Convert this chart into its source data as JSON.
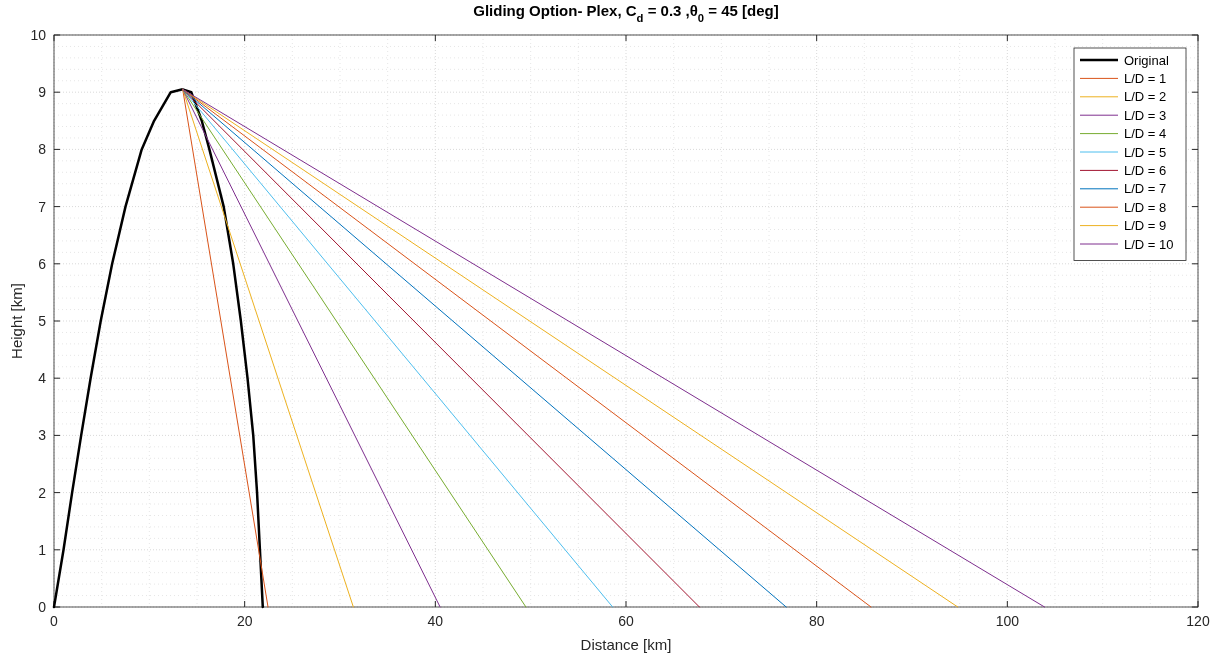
{
  "chart_data": {
    "type": "line",
    "title": "Gliding Option- Plex, C$_{d}$ = 0.3 ,θ$_{0}$ = 45 [deg]",
    "xlabel": "Distance [km]",
    "ylabel": "Height [km]",
    "xlim": [
      0,
      120
    ],
    "ylim": [
      0,
      10
    ],
    "xticks": [
      0,
      20,
      40,
      60,
      80,
      100,
      120
    ],
    "yticks": [
      0,
      1,
      2,
      3,
      4,
      5,
      6,
      7,
      8,
      9,
      10
    ],
    "grid": true,
    "legend": "top right",
    "marker": "none",
    "line_style": "solid",
    "series": [
      {
        "name": "Original",
        "color": "#000000",
        "x": [
          0,
          1.0,
          1.9,
          2.85,
          3.84,
          4.9,
          6.1,
          7.5,
          9.2,
          10.5,
          12.25,
          13.5,
          14.4,
          15.5,
          16.3,
          17.8,
          18.8,
          19.6,
          20.3,
          20.9,
          21.3,
          21.6,
          21.9
        ],
        "values": [
          0,
          1,
          2,
          3,
          4,
          5,
          6,
          7,
          8,
          8.5,
          9,
          9.05,
          9,
          8.5,
          8,
          7,
          6,
          5,
          4,
          3,
          2,
          1,
          0
        ]
      },
      {
        "name": "L/D = 1",
        "color": "#d95319",
        "x": [
          13.5,
          22.45
        ],
        "values": [
          9.05,
          0
        ]
      },
      {
        "name": "L/D = 2",
        "color": "#edb120",
        "x": [
          13.5,
          31.4
        ],
        "values": [
          9.05,
          0
        ]
      },
      {
        "name": "L/D = 3",
        "color": "#7e2f8e",
        "x": [
          13.5,
          40.5
        ],
        "values": [
          9.05,
          0
        ]
      },
      {
        "name": "L/D = 4",
        "color": "#77ac30",
        "x": [
          13.5,
          49.5
        ],
        "values": [
          9.05,
          0
        ]
      },
      {
        "name": "L/D = 5",
        "color": "#4dbeee",
        "x": [
          13.5,
          58.6
        ],
        "values": [
          9.05,
          0
        ]
      },
      {
        "name": "L/D = 6",
        "color": "#a2142f",
        "x": [
          13.5,
          67.7
        ],
        "values": [
          9.05,
          0
        ]
      },
      {
        "name": "L/D = 7",
        "color": "#0072bd",
        "x": [
          13.5,
          76.8
        ],
        "values": [
          9.05,
          0
        ]
      },
      {
        "name": "L/D = 8",
        "color": "#d95319",
        "x": [
          13.5,
          85.7
        ],
        "values": [
          9.05,
          0
        ]
      },
      {
        "name": "L/D = 9",
        "color": "#edb120",
        "x": [
          13.5,
          94.8
        ],
        "values": [
          9.05,
          0
        ]
      },
      {
        "name": "L/D = 10",
        "color": "#7e2f8e",
        "x": [
          13.5,
          103.9
        ],
        "values": [
          9.05,
          0
        ]
      }
    ]
  }
}
